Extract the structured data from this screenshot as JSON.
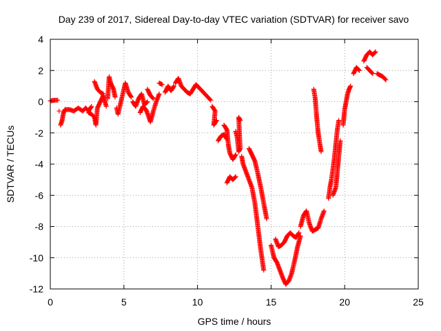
{
  "chart_data": {
    "type": "scatter",
    "title": "Day 239 of 2017, Sidereal Day-to-day VTEC variation (SDTVAR) for receiver savo",
    "xlabel": "GPS time / hours",
    "ylabel": "SDTVAR / TECUs",
    "xlim": [
      0,
      25
    ],
    "ylim": [
      -12,
      4
    ],
    "xticks": [
      0,
      5,
      10,
      15,
      20,
      25
    ],
    "yticks": [
      -12,
      -10,
      -8,
      -6,
      -4,
      -2,
      0,
      2,
      4
    ],
    "grid": true,
    "marker": "+",
    "color": "#ff0000",
    "series": [
      {
        "name": "SDTVAR",
        "segments": [
          [
            [
              0.0,
              0.05
            ],
            [
              0.3,
              0.1
            ],
            [
              0.5,
              0.1
            ]
          ],
          [
            [
              0.6,
              -0.6
            ]
          ],
          [
            [
              0.7,
              -1.5
            ],
            [
              0.8,
              -1.2
            ],
            [
              0.9,
              -0.7
            ],
            [
              1.0,
              -0.5
            ],
            [
              1.3,
              -0.5
            ],
            [
              1.6,
              -0.6
            ],
            [
              1.9,
              -0.4
            ],
            [
              2.2,
              -0.6
            ],
            [
              2.4,
              -0.4
            ],
            [
              2.6,
              -0.6
            ],
            [
              2.8,
              -0.3
            ]
          ],
          [
            [
              2.6,
              -0.7
            ],
            [
              2.8,
              -0.8
            ],
            [
              3.0,
              -1.0
            ],
            [
              3.1,
              -1.5
            ],
            [
              3.2,
              -0.4
            ],
            [
              3.4,
              0.0
            ],
            [
              3.6,
              0.4
            ],
            [
              3.8,
              -0.3
            ]
          ],
          [
            [
              3.0,
              1.3
            ],
            [
              3.2,
              0.8
            ],
            [
              3.4,
              0.6
            ],
            [
              3.6,
              0.5
            ]
          ],
          [
            [
              3.9,
              0.2
            ],
            [
              4.0,
              1.6
            ],
            [
              4.1,
              1.2
            ],
            [
              4.3,
              0.8
            ],
            [
              4.4,
              0.3
            ]
          ],
          [
            [
              4.5,
              -0.4
            ],
            [
              4.6,
              -0.8
            ],
            [
              4.8,
              0.0
            ],
            [
              5.0,
              0.8
            ],
            [
              5.1,
              1.2
            ],
            [
              5.3,
              0.6
            ],
            [
              5.5,
              0.3
            ]
          ],
          [
            [
              5.6,
              0.0
            ],
            [
              5.8,
              -0.3
            ],
            [
              6.0,
              0.2
            ],
            [
              6.2,
              0.5
            ],
            [
              6.4,
              -0.2
            ],
            [
              6.6,
              0.0
            ]
          ],
          [
            [
              6.1,
              -0.7
            ],
            [
              6.3,
              -0.3
            ],
            [
              6.5,
              -0.5
            ],
            [
              6.7,
              -1.0
            ],
            [
              6.8,
              -1.3
            ],
            [
              7.0,
              -0.6
            ],
            [
              7.2,
              0.0
            ],
            [
              7.4,
              0.5
            ]
          ],
          [
            [
              6.6,
              0.8
            ],
            [
              6.8,
              0.4
            ],
            [
              7.0,
              0.2
            ]
          ],
          [
            [
              7.4,
              1.2
            ],
            [
              7.6,
              1.1
            ]
          ],
          [
            [
              7.8,
              0.6
            ],
            [
              8.0,
              1.0
            ],
            [
              8.2,
              0.7
            ],
            [
              8.4,
              1.0
            ]
          ],
          [
            [
              8.5,
              1.2
            ],
            [
              8.7,
              1.5
            ],
            [
              8.9,
              1.0
            ],
            [
              9.1,
              0.8
            ],
            [
              9.3,
              0.6
            ],
            [
              9.5,
              0.5
            ],
            [
              9.7,
              0.8
            ],
            [
              9.9,
              1.1
            ],
            [
              10.1,
              0.9
            ],
            [
              10.3,
              0.7
            ],
            [
              10.5,
              0.5
            ],
            [
              10.7,
              0.3
            ],
            [
              10.9,
              0.1
            ]
          ],
          [
            [
              11.0,
              -0.3
            ],
            [
              11.2,
              -0.6
            ],
            [
              11.1,
              -1.5
            ],
            [
              11.3,
              -1.2
            ]
          ],
          [
            [
              11.4,
              -2.5
            ],
            [
              11.6,
              -2.2
            ],
            [
              11.8,
              -2.1
            ],
            [
              12.0,
              -2.4
            ]
          ],
          [
            [
              11.8,
              -1.5
            ],
            [
              12.0,
              -1.8
            ],
            [
              12.1,
              -2.8
            ],
            [
              12.2,
              -3.3
            ],
            [
              12.4,
              -3.7
            ],
            [
              12.6,
              -3.4
            ]
          ],
          [
            [
              12.0,
              -5.2
            ],
            [
              12.2,
              -4.8
            ],
            [
              12.4,
              -5.0
            ],
            [
              12.6,
              -4.8
            ]
          ],
          [
            [
              12.6,
              -1.9
            ],
            [
              12.7,
              -2.3
            ],
            [
              12.8,
              -3.2
            ],
            [
              12.9,
              -3.0
            ],
            [
              12.8,
              -1.0
            ],
            [
              12.9,
              -1.2
            ]
          ],
          [
            [
              13.0,
              -3.5
            ],
            [
              13.1,
              -4.0
            ],
            [
              13.3,
              -4.5
            ],
            [
              13.5,
              -5.0
            ],
            [
              13.7,
              -5.5
            ],
            [
              13.9,
              -6.5
            ],
            [
              14.1,
              -8.0
            ],
            [
              14.3,
              -9.5
            ],
            [
              14.5,
              -10.8
            ]
          ],
          [
            [
              13.5,
              -3.0
            ],
            [
              13.7,
              -3.4
            ],
            [
              13.9,
              -3.8
            ],
            [
              14.1,
              -4.6
            ],
            [
              14.3,
              -5.5
            ],
            [
              14.5,
              -6.5
            ],
            [
              14.7,
              -7.5
            ]
          ],
          [
            [
              15.0,
              -9.2
            ],
            [
              15.2,
              -10.0
            ],
            [
              15.4,
              -10.3
            ],
            [
              15.6,
              -10.8
            ],
            [
              15.8,
              -11.3
            ],
            [
              16.0,
              -11.7
            ],
            [
              16.2,
              -11.5
            ],
            [
              16.4,
              -11.0
            ],
            [
              16.6,
              -10.2
            ],
            [
              16.8,
              -9.3
            ],
            [
              17.0,
              -8.6
            ]
          ],
          [
            [
              15.3,
              -8.8
            ],
            [
              15.5,
              -9.3
            ],
            [
              15.7,
              -9.2
            ],
            [
              15.9,
              -9.0
            ],
            [
              16.1,
              -8.6
            ],
            [
              16.3,
              -8.4
            ],
            [
              16.5,
              -8.6
            ],
            [
              16.7,
              -8.7
            ],
            [
              16.9,
              -8.4
            ]
          ],
          [
            [
              17.0,
              -8.0
            ],
            [
              17.2,
              -7.3
            ],
            [
              17.4,
              -7.0
            ],
            [
              17.6,
              -7.8
            ],
            [
              17.8,
              -8.3
            ],
            [
              18.0,
              -8.2
            ],
            [
              18.2,
              -8.1
            ],
            [
              18.4,
              -7.5
            ],
            [
              18.6,
              -7.0
            ]
          ],
          [
            [
              17.9,
              0.8
            ],
            [
              18.0,
              0.2
            ],
            [
              18.1,
              -1.0
            ],
            [
              18.2,
              -2.0
            ],
            [
              18.3,
              -2.6
            ],
            [
              18.4,
              -3.2
            ]
          ],
          [
            [
              18.9,
              -6.2
            ],
            [
              19.0,
              -5.5
            ],
            [
              19.1,
              -5.0
            ],
            [
              19.2,
              -4.3
            ],
            [
              19.3,
              -3.6
            ],
            [
              19.4,
              -2.7
            ],
            [
              19.5,
              -1.8
            ],
            [
              19.6,
              -1.2
            ]
          ],
          [
            [
              19.2,
              -6.0
            ],
            [
              19.4,
              -5.5
            ],
            [
              19.5,
              -4.5
            ],
            [
              19.6,
              -3.5
            ],
            [
              19.7,
              -2.5
            ]
          ],
          [
            [
              19.9,
              -1.5
            ],
            [
              20.0,
              -0.5
            ],
            [
              20.1,
              0.0
            ],
            [
              20.2,
              0.5
            ],
            [
              20.3,
              0.8
            ],
            [
              20.4,
              1.0
            ]
          ],
          [
            [
              20.6,
              1.8
            ],
            [
              20.8,
              2.2
            ],
            [
              21.0,
              2.0
            ]
          ],
          [
            [
              21.3,
              2.6
            ],
            [
              21.5,
              3.0
            ],
            [
              21.7,
              3.2
            ],
            [
              21.9,
              3.0
            ],
            [
              22.1,
              3.2
            ]
          ],
          [
            [
              21.5,
              2.2
            ],
            [
              21.7,
              2.0
            ],
            [
              21.9,
              1.8
            ]
          ],
          [
            [
              22.2,
              1.8
            ],
            [
              22.4,
              1.7
            ],
            [
              22.6,
              1.6
            ],
            [
              22.8,
              1.4
            ]
          ]
        ]
      }
    ]
  }
}
